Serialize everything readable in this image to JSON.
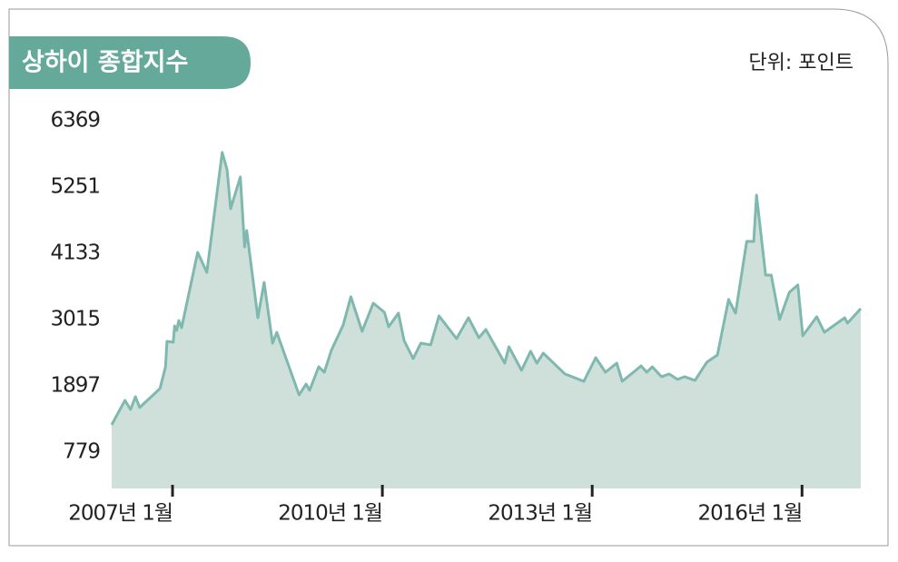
{
  "chart_data": {
    "type": "area",
    "title": "상하이 종합지수",
    "unit_label": "단위: 포인트",
    "color": "#7fb8ae",
    "fill": "#cfe0da",
    "x": [
      2006.13,
      2006.32,
      2006.4,
      2006.47,
      2006.53,
      2006.82,
      2006.9,
      2006.92,
      2007.01,
      2007.03,
      2007.06,
      2007.09,
      2007.13,
      2007.36,
      2007.49,
      2007.71,
      2007.78,
      2007.83,
      2007.97,
      2008.03,
      2008.06,
      2008.22,
      2008.31,
      2008.43,
      2008.49,
      2008.81,
      2008.91,
      2008.96,
      2009.09,
      2009.17,
      2009.27,
      2009.44,
      2009.55,
      2009.71,
      2009.87,
      2010.03,
      2010.09,
      2010.23,
      2010.31,
      2010.44,
      2010.55,
      2010.69,
      2010.81,
      2011.06,
      2011.23,
      2011.38,
      2011.48,
      2011.75,
      2011.81,
      2011.99,
      2012.12,
      2012.21,
      2012.3,
      2012.61,
      2012.88,
      2013.05,
      2013.19,
      2013.35,
      2013.43,
      2013.7,
      2013.78,
      2013.86,
      2013.99,
      2014.1,
      2014.22,
      2014.32,
      2014.47,
      2014.64,
      2014.79,
      2014.95,
      2015.05,
      2015.21,
      2015.31,
      2015.35,
      2015.48,
      2015.56,
      2015.68,
      2015.82,
      2015.94,
      2016.01,
      2016.21,
      2016.32,
      2016.61,
      2016.65,
      2016.84
    ],
    "values": [
      1239,
      1652,
      1499,
      1714,
      1530,
      1851,
      2219,
      2648,
      2633,
      2908,
      2832,
      3000,
      2878,
      4149,
      3812,
      5835,
      5544,
      4885,
      5421,
      4241,
      4517,
      3046,
      3643,
      2617,
      2801,
      1744,
      1928,
      1821,
      2219,
      2127,
      2495,
      2924,
      3399,
      2817,
      3292,
      3138,
      2893,
      3123,
      2663,
      2357,
      2617,
      2587,
      3077,
      2694,
      3046,
      2709,
      2847,
      2280,
      2556,
      2158,
      2480,
      2280,
      2449,
      2097,
      1974,
      2372,
      2127,
      2280,
      1974,
      2234,
      2127,
      2219,
      2051,
      2097,
      2005,
      2051,
      1989,
      2296,
      2418,
      3353,
      3123,
      4333,
      4333,
      5115,
      3766,
      3766,
      3016,
      3476,
      3598,
      2740,
      3062,
      2801,
      3046,
      2955,
      3200
    ],
    "xlim": [
      2006.13,
      2016.84
    ],
    "xticks": [
      {
        "value": 2007,
        "label": "2007년 1월"
      },
      {
        "value": 2010,
        "label": "2010년 1월"
      },
      {
        "value": 2013,
        "label": "2013년 1월"
      },
      {
        "value": 2016,
        "label": "2016년 1월"
      }
    ],
    "ylim": [
      166,
      6599
    ],
    "yticks": [
      779,
      1897,
      3015,
      4133,
      5251,
      6369
    ]
  }
}
